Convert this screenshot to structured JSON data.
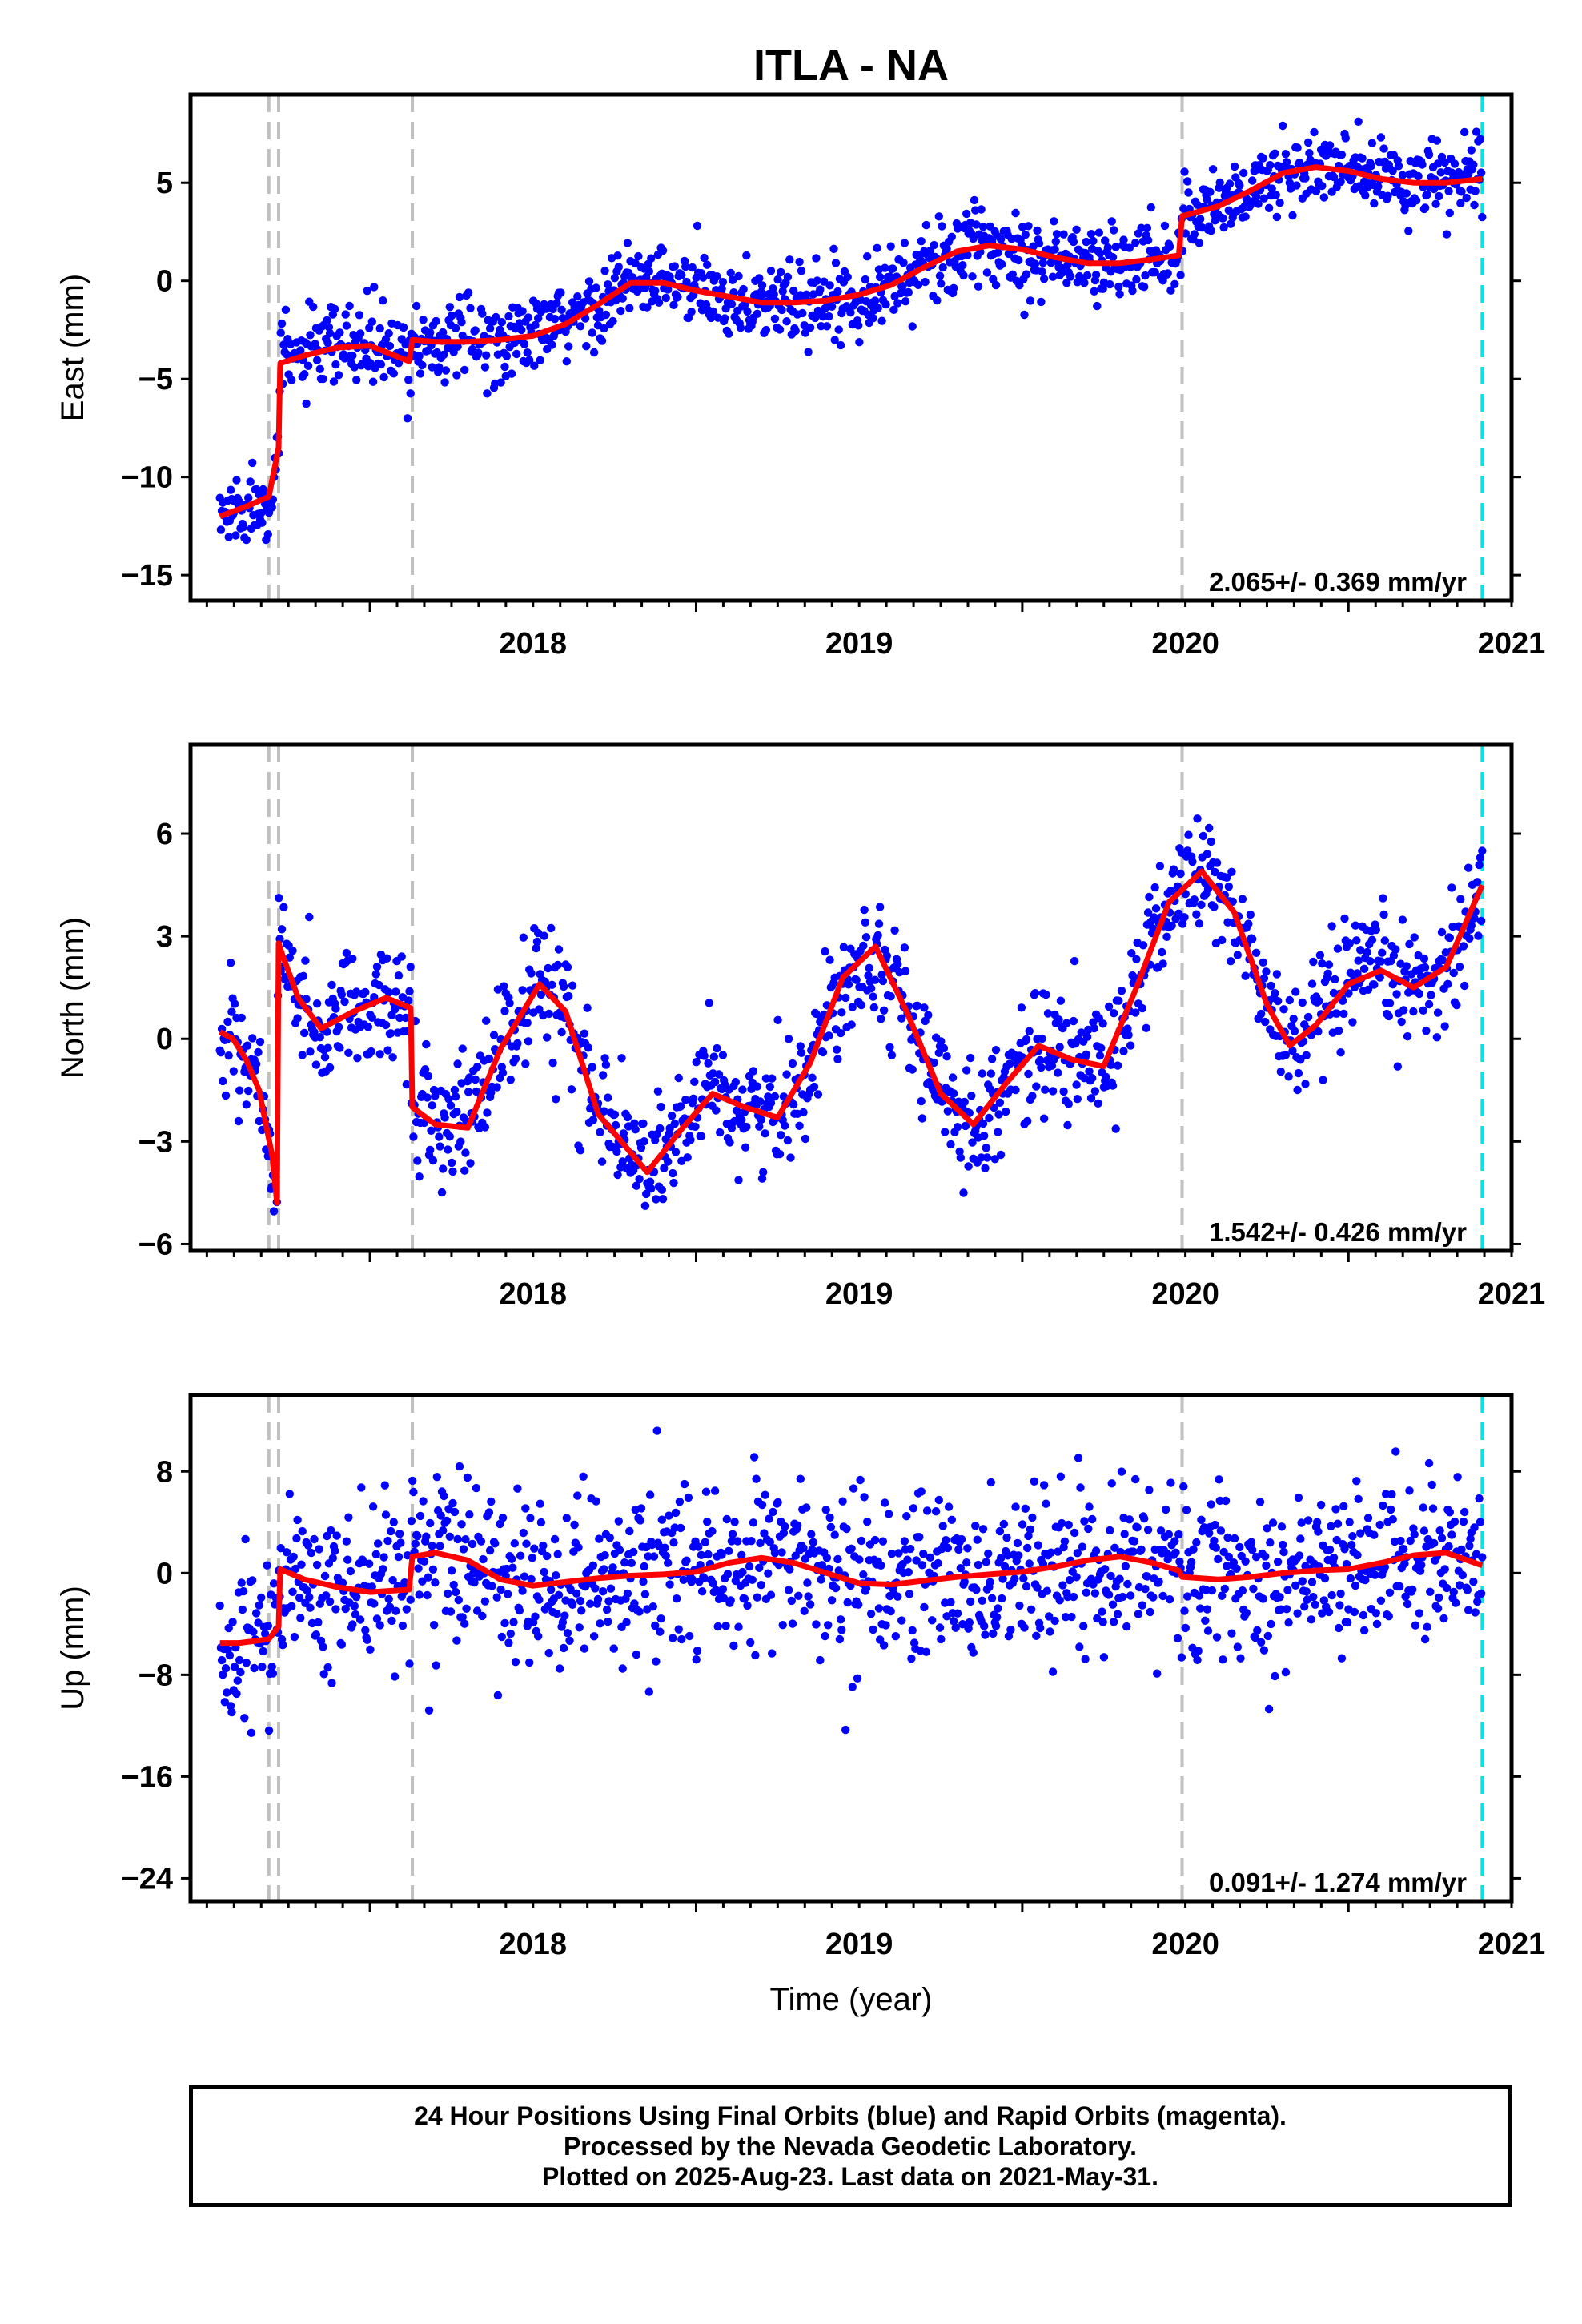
{
  "title": "ITLA - NA",
  "x_axis_label": "Time (year)",
  "footer": {
    "line1": "24 Hour Positions Using Final Orbits (blue) and Rapid Orbits (magenta).",
    "line2": "Processed by the Nevada Geodetic Laboratory.",
    "line3": "Plotted on 2025-Aug-23. Last data on 2021-May-31."
  },
  "colors": {
    "data_points": "#0000ff",
    "model_fit": "#ff0000",
    "event_lines": "#c0c0c0",
    "last_data_line": "#00e5e5"
  },
  "chart_data": [
    {
      "type": "scatter",
      "ylabel": "East (mm)",
      "xlim": [
        2017.45,
        2021.5
      ],
      "ylim": [
        -16.3,
        9.5
      ],
      "xticks": [
        "2018",
        "2019",
        "2020",
        "2021"
      ],
      "yticks": [
        "-15",
        "-10",
        "-5",
        "0",
        "5"
      ],
      "rate": "2.065+/- 0.369 mm/yr",
      "event_lines": [
        2017.69,
        2017.72,
        2018.13,
        2020.49
      ],
      "last_data": 2021.41,
      "model": {
        "x": [
          2017.54,
          2017.62,
          2017.69,
          2017.72,
          2017.725,
          2017.8,
          2017.9,
          2018.0,
          2018.12,
          2018.13,
          2018.2,
          2018.3,
          2018.4,
          2018.5,
          2018.6,
          2018.7,
          2018.8,
          2018.9,
          2019.0,
          2019.1,
          2019.2,
          2019.3,
          2019.4,
          2019.5,
          2019.6,
          2019.7,
          2019.8,
          2019.9,
          2020.0,
          2020.1,
          2020.2,
          2020.3,
          2020.4,
          2020.48,
          2020.49,
          2020.6,
          2020.7,
          2020.8,
          2020.9,
          2021.0,
          2021.1,
          2021.2,
          2021.3,
          2021.41
        ],
        "y": [
          -12.0,
          -11.5,
          -11.0,
          -8.5,
          -4.2,
          -3.8,
          -3.4,
          -3.3,
          -4.1,
          -3.0,
          -3.1,
          -3.1,
          -3.0,
          -2.8,
          -2.2,
          -1.2,
          -0.1,
          -0.1,
          -0.5,
          -0.8,
          -1.1,
          -1.1,
          -1.0,
          -0.7,
          -0.2,
          0.7,
          1.5,
          1.8,
          1.6,
          1.2,
          0.9,
          0.9,
          1.1,
          1.3,
          3.3,
          3.8,
          4.6,
          5.5,
          5.8,
          5.6,
          5.2,
          5.0,
          5.0,
          5.2
        ]
      },
      "scatter_noise": 1.0
    },
    {
      "type": "scatter",
      "ylabel": "North (mm)",
      "xlim": [
        2017.45,
        2021.5
      ],
      "ylim": [
        -6.2,
        8.6
      ],
      "xticks": [
        "2018",
        "2019",
        "2020",
        "2021"
      ],
      "yticks": [
        "-6",
        "-3",
        "0",
        "3",
        "6"
      ],
      "rate": "1.542+/- 0.426 mm/yr",
      "event_lines": [
        2017.69,
        2017.72,
        2018.13,
        2020.49
      ],
      "last_data": 2021.41,
      "model": {
        "x": [
          2017.54,
          2017.58,
          2017.62,
          2017.66,
          2017.7,
          2017.715,
          2017.72,
          2017.73,
          2017.78,
          2017.85,
          2017.95,
          2018.05,
          2018.125,
          2018.13,
          2018.2,
          2018.3,
          2018.4,
          2018.52,
          2018.6,
          2018.7,
          2018.85,
          2018.95,
          2019.05,
          2019.15,
          2019.25,
          2019.35,
          2019.45,
          2019.55,
          2019.65,
          2019.75,
          2019.85,
          2019.95,
          2020.05,
          2020.15,
          2020.25,
          2020.35,
          2020.45,
          2020.55,
          2020.65,
          2020.75,
          2020.82,
          2020.9,
          2021.0,
          2021.1,
          2021.2,
          2021.3,
          2021.41
        ],
        "y": [
          0.2,
          0.0,
          -0.6,
          -1.5,
          -3.4,
          -4.8,
          2.8,
          2.5,
          1.2,
          0.3,
          0.8,
          1.2,
          0.9,
          -2.0,
          -2.5,
          -2.6,
          -0.3,
          1.6,
          0.8,
          -2.2,
          -3.9,
          -2.7,
          -1.6,
          -2.0,
          -2.3,
          -0.7,
          1.8,
          2.7,
          0.7,
          -1.6,
          -2.5,
          -1.3,
          -0.2,
          -0.6,
          -0.8,
          1.5,
          4.0,
          4.9,
          3.7,
          1.0,
          -0.2,
          0.4,
          1.6,
          2.0,
          1.5,
          2.1,
          4.5
        ]
      },
      "scatter_noise": 0.85
    },
    {
      "type": "scatter",
      "ylabel": "Up (mm)",
      "xlim": [
        2017.45,
        2021.5
      ],
      "ylim": [
        -25.8,
        14.0
      ],
      "xticks": [
        "2018",
        "2019",
        "2020",
        "2021"
      ],
      "yticks": [
        "-24",
        "-16",
        "-8",
        "0",
        "8"
      ],
      "rate": "0.091+/- 1.274 mm/yr",
      "event_lines": [
        2017.69,
        2017.72,
        2018.13,
        2020.49
      ],
      "last_data": 2021.41,
      "model": {
        "x": [
          2017.54,
          2017.6,
          2017.69,
          2017.72,
          2017.725,
          2017.8,
          2017.9,
          2018.0,
          2018.12,
          2018.13,
          2018.2,
          2018.3,
          2018.4,
          2018.5,
          2018.6,
          2018.7,
          2018.8,
          2018.9,
          2019.0,
          2019.1,
          2019.2,
          2019.3,
          2019.4,
          2019.5,
          2019.6,
          2019.7,
          2019.8,
          2019.9,
          2020.0,
          2020.1,
          2020.2,
          2020.3,
          2020.4,
          2020.48,
          2020.49,
          2020.6,
          2020.7,
          2020.8,
          2020.9,
          2021.0,
          2021.1,
          2021.2,
          2021.3,
          2021.41
        ],
        "y": [
          -5.5,
          -5.5,
          -5.2,
          -4.2,
          0.3,
          -0.5,
          -1.1,
          -1.5,
          -1.3,
          1.3,
          1.6,
          1.0,
          -0.5,
          -1.0,
          -0.7,
          -0.4,
          -0.2,
          -0.1,
          0.1,
          0.8,
          1.2,
          0.8,
          0.0,
          -0.8,
          -0.9,
          -0.6,
          -0.3,
          -0.1,
          0.1,
          0.5,
          1.0,
          1.3,
          0.8,
          0.2,
          -0.3,
          -0.5,
          -0.3,
          0.0,
          0.2,
          0.3,
          0.8,
          1.4,
          1.6,
          0.6
        ]
      },
      "scatter_noise": 3.2
    }
  ]
}
